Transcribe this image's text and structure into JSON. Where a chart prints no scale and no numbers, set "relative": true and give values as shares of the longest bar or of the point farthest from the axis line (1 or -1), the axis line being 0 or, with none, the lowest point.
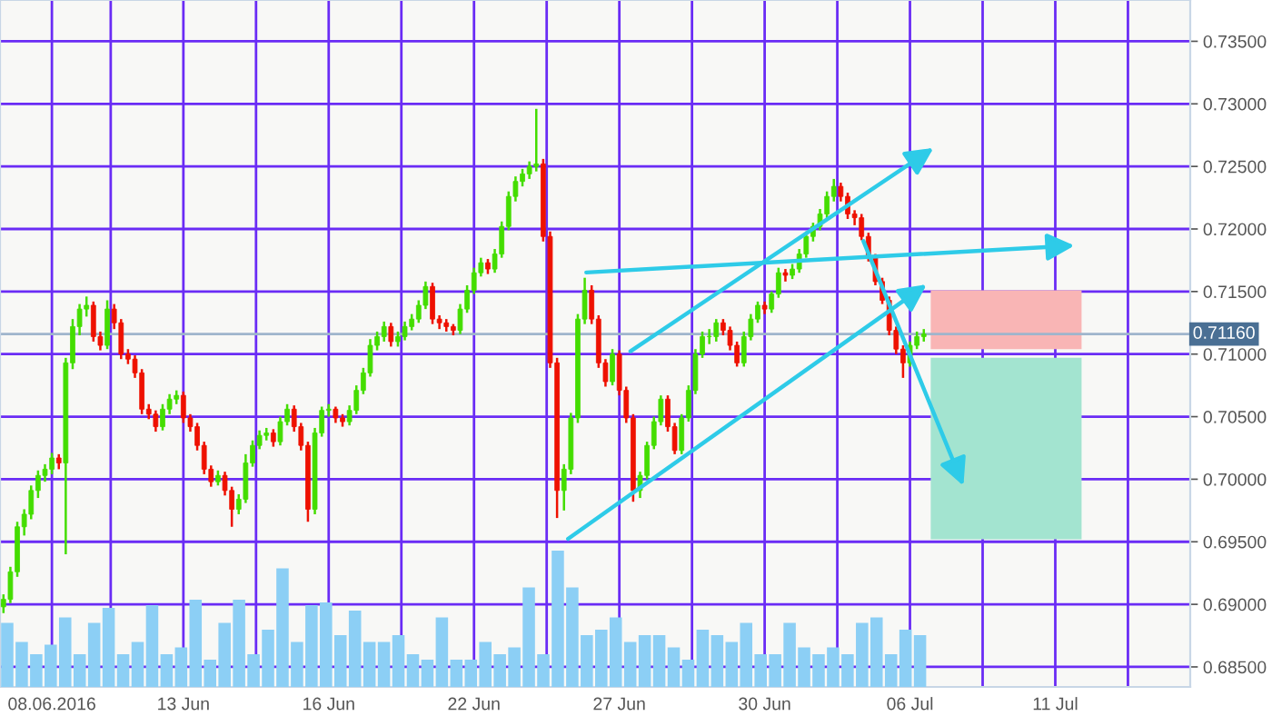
{
  "chart_data": [
    {
      "type": "candlestick",
      "categories": [
        null,
        null,
        null,
        null,
        null,
        null,
        null,
        "08.06.2016",
        null,
        null,
        null,
        null,
        null,
        null,
        null,
        null,
        null,
        null,
        null,
        null,
        null,
        null,
        null,
        null,
        null,
        null,
        "13 Jun",
        null,
        null,
        null,
        null,
        null,
        null,
        null,
        null,
        null,
        null,
        null,
        null,
        null,
        null,
        null,
        null,
        null,
        null,
        null,
        null,
        "16 Jun",
        null,
        null,
        null,
        null,
        null,
        null,
        null,
        null,
        null,
        null,
        null,
        null,
        null,
        null,
        null,
        null,
        null,
        null,
        null,
        null,
        "22 Jun",
        null,
        null,
        null,
        null,
        null,
        null,
        null,
        null,
        null,
        null,
        null,
        null,
        null,
        null,
        null,
        null,
        null,
        null,
        null,
        null,
        "27 Jun",
        null,
        null,
        null,
        null,
        null,
        null,
        null,
        null,
        null,
        null,
        null,
        null,
        null,
        null,
        null,
        null,
        null,
        null,
        null,
        null,
        "30 Jun",
        null,
        null,
        null,
        null,
        null,
        null,
        null,
        null,
        null,
        null,
        null,
        null,
        null,
        null,
        null,
        null,
        null,
        null,
        null,
        null,
        "06 Jul",
        null,
        null,
        null,
        null,
        null,
        null,
        null,
        null,
        null,
        null,
        null,
        null,
        null,
        null,
        null,
        null,
        null,
        null,
        null,
        null,
        "11 Jul",
        null,
        null,
        null,
        null,
        null,
        null,
        null,
        null,
        null,
        null,
        null,
        null,
        null,
        null,
        null,
        null,
        null,
        null,
        null
      ],
      "ohlc": [
        [
          0.6898,
          0.6908,
          0.6893,
          0.6904
        ],
        [
          0.6904,
          0.693,
          0.6901,
          0.6926
        ],
        [
          0.6926,
          0.6966,
          0.6922,
          0.6962
        ],
        [
          0.6962,
          0.6976,
          0.6955,
          0.6972
        ],
        [
          0.6972,
          0.6995,
          0.6968,
          0.6991
        ],
        [
          0.6991,
          0.7007,
          0.6985,
          0.7003
        ],
        [
          0.7003,
          0.7012,
          0.6998,
          0.7008
        ],
        [
          0.7008,
          0.7021,
          0.7004,
          0.7017
        ],
        [
          0.7017,
          0.702,
          0.7008,
          0.7013
        ],
        [
          0.7013,
          0.7097,
          0.694,
          0.7093
        ],
        [
          0.7093,
          0.7128,
          0.7088,
          0.7122
        ],
        [
          0.7122,
          0.714,
          0.7115,
          0.7136
        ],
        [
          0.7136,
          0.7146,
          0.713,
          0.7139
        ],
        [
          0.7139,
          0.7142,
          0.711,
          0.7114
        ],
        [
          0.7114,
          0.7118,
          0.7103,
          0.7107
        ],
        [
          0.7107,
          0.7143,
          0.7104,
          0.7136
        ],
        [
          0.7136,
          0.714,
          0.712,
          0.7125
        ],
        [
          0.7125,
          0.7128,
          0.7096,
          0.71
        ],
        [
          0.71,
          0.7104,
          0.7092,
          0.7096
        ],
        [
          0.7096,
          0.7099,
          0.7081,
          0.7085
        ],
        [
          0.7085,
          0.7088,
          0.7052,
          0.7056
        ],
        [
          0.7056,
          0.706,
          0.7048,
          0.7052
        ],
        [
          0.7052,
          0.7055,
          0.7038,
          0.7042
        ],
        [
          0.7042,
          0.706,
          0.7039,
          0.7056
        ],
        [
          0.7056,
          0.7068,
          0.7052,
          0.7064
        ],
        [
          0.7064,
          0.7071,
          0.706,
          0.7067
        ],
        [
          0.7067,
          0.707,
          0.7045,
          0.7049
        ],
        [
          0.7049,
          0.7052,
          0.7038,
          0.7042
        ],
        [
          0.7042,
          0.7045,
          0.7023,
          0.7027
        ],
        [
          0.7027,
          0.703,
          0.7004,
          0.7008
        ],
        [
          0.7008,
          0.7011,
          0.6994,
          0.6998
        ],
        [
          0.6998,
          0.7007,
          0.6995,
          0.7003
        ],
        [
          0.7003,
          0.7006,
          0.6987,
          0.6991
        ],
        [
          0.6991,
          0.6994,
          0.6962,
          0.6976
        ],
        [
          0.6976,
          0.6988,
          0.6972,
          0.6984
        ],
        [
          0.6984,
          0.702,
          0.6981,
          0.7013
        ],
        [
          0.7013,
          0.7031,
          0.701,
          0.7027
        ],
        [
          0.7027,
          0.7039,
          0.7024,
          0.7035
        ],
        [
          0.7035,
          0.7041,
          0.7031,
          0.7037
        ],
        [
          0.7037,
          0.704,
          0.7026,
          0.703
        ],
        [
          0.703,
          0.705,
          0.7027,
          0.7046
        ],
        [
          0.7046,
          0.706,
          0.7043,
          0.7056
        ],
        [
          0.7056,
          0.7059,
          0.7038,
          0.7042
        ],
        [
          0.7042,
          0.7045,
          0.7023,
          0.7027
        ],
        [
          0.7027,
          0.703,
          0.6966,
          0.6976
        ],
        [
          0.6976,
          0.7041,
          0.6972,
          0.7037
        ],
        [
          0.7037,
          0.7058,
          0.7034,
          0.7055
        ],
        [
          0.7055,
          0.706,
          0.705,
          0.7056
        ],
        [
          0.7056,
          0.7058,
          0.7045,
          0.7049
        ],
        [
          0.7049,
          0.7052,
          0.7042,
          0.7046
        ],
        [
          0.7046,
          0.7059,
          0.7043,
          0.7055
        ],
        [
          0.7055,
          0.7075,
          0.7052,
          0.7071
        ],
        [
          0.7071,
          0.7089,
          0.7068,
          0.7085
        ],
        [
          0.7085,
          0.7112,
          0.7082,
          0.7107
        ],
        [
          0.7107,
          0.7118,
          0.7103,
          0.7114
        ],
        [
          0.7114,
          0.7126,
          0.711,
          0.7122
        ],
        [
          0.7122,
          0.7125,
          0.7106,
          0.711
        ],
        [
          0.711,
          0.7118,
          0.7106,
          0.7114
        ],
        [
          0.7114,
          0.7126,
          0.7111,
          0.7122
        ],
        [
          0.7122,
          0.7132,
          0.7119,
          0.7128
        ],
        [
          0.7128,
          0.7143,
          0.7125,
          0.7139
        ],
        [
          0.7139,
          0.7158,
          0.7136,
          0.7154
        ],
        [
          0.7154,
          0.7157,
          0.7124,
          0.7128
        ],
        [
          0.7128,
          0.7131,
          0.712,
          0.7125
        ],
        [
          0.7125,
          0.7128,
          0.7118,
          0.7122
        ],
        [
          0.7122,
          0.7124,
          0.7115,
          0.7119
        ],
        [
          0.7119,
          0.714,
          0.7116,
          0.7136
        ],
        [
          0.7136,
          0.7155,
          0.7133,
          0.7151
        ],
        [
          0.7151,
          0.7169,
          0.7148,
          0.7165
        ],
        [
          0.7165,
          0.7177,
          0.7162,
          0.7173
        ],
        [
          0.7173,
          0.7176,
          0.7164,
          0.7168
        ],
        [
          0.7168,
          0.7184,
          0.7165,
          0.718
        ],
        [
          0.718,
          0.7206,
          0.7177,
          0.7202
        ],
        [
          0.7202,
          0.723,
          0.7199,
          0.7226
        ],
        [
          0.7226,
          0.7242,
          0.7222,
          0.7238
        ],
        [
          0.7238,
          0.7248,
          0.7234,
          0.7244
        ],
        [
          0.7244,
          0.7254,
          0.724,
          0.725
        ],
        [
          0.725,
          0.7296,
          0.7246,
          0.7252
        ],
        [
          0.7252,
          0.7256,
          0.719,
          0.7194
        ],
        [
          0.7194,
          0.7198,
          0.7089,
          0.7093
        ],
        [
          0.7093,
          0.7097,
          0.6969,
          0.6991
        ],
        [
          0.6991,
          0.7012,
          0.6975,
          0.7008
        ],
        [
          0.7008,
          0.7053,
          0.7004,
          0.7049
        ],
        [
          0.7049,
          0.7132,
          0.7045,
          0.7128
        ],
        [
          0.7128,
          0.7161,
          0.7124,
          0.7151
        ],
        [
          0.7151,
          0.7155,
          0.7124,
          0.7128
        ],
        [
          0.7128,
          0.7131,
          0.7089,
          0.7093
        ],
        [
          0.7093,
          0.7096,
          0.7074,
          0.7078
        ],
        [
          0.7078,
          0.7104,
          0.7075,
          0.71
        ],
        [
          0.71,
          0.7103,
          0.7067,
          0.7071
        ],
        [
          0.7071,
          0.7074,
          0.7045,
          0.7049
        ],
        [
          0.7049,
          0.7052,
          0.6982,
          0.6991
        ],
        [
          0.6991,
          0.7006,
          0.6985,
          0.7003
        ],
        [
          0.7003,
          0.703,
          0.7,
          0.7027
        ],
        [
          0.7027,
          0.705,
          0.7024,
          0.7046
        ],
        [
          0.7046,
          0.7067,
          0.7043,
          0.7064
        ],
        [
          0.7064,
          0.7067,
          0.7038,
          0.7042
        ],
        [
          0.7042,
          0.7045,
          0.702,
          0.7023
        ],
        [
          0.7023,
          0.7052,
          0.702,
          0.7049
        ],
        [
          0.7049,
          0.7075,
          0.7046,
          0.7071
        ],
        [
          0.7071,
          0.7104,
          0.7068,
          0.71
        ],
        [
          0.71,
          0.7118,
          0.7097,
          0.7114
        ],
        [
          0.7114,
          0.712,
          0.7108,
          0.7114
        ],
        [
          0.7114,
          0.7128,
          0.711,
          0.7125
        ],
        [
          0.7125,
          0.7128,
          0.7115,
          0.7119
        ],
        [
          0.7119,
          0.7122,
          0.7103,
          0.7107
        ],
        [
          0.7107,
          0.711,
          0.709,
          0.7093
        ],
        [
          0.7093,
          0.7118,
          0.709,
          0.7114
        ],
        [
          0.7114,
          0.7132,
          0.7111,
          0.7128
        ],
        [
          0.7128,
          0.7142,
          0.7125,
          0.7139
        ],
        [
          0.7139,
          0.7142,
          0.7132,
          0.7136
        ],
        [
          0.7136,
          0.715,
          0.7133,
          0.7148
        ],
        [
          0.7148,
          0.7169,
          0.7145,
          0.7165
        ],
        [
          0.7165,
          0.7168,
          0.7158,
          0.7163
        ],
        [
          0.7163,
          0.7172,
          0.716,
          0.7168
        ],
        [
          0.7168,
          0.7184,
          0.7165,
          0.718
        ],
        [
          0.718,
          0.7198,
          0.7177,
          0.7194
        ],
        [
          0.7194,
          0.7205,
          0.719,
          0.7202
        ],
        [
          0.7202,
          0.7216,
          0.7199,
          0.7212
        ],
        [
          0.7212,
          0.723,
          0.7208,
          0.7226
        ],
        [
          0.7226,
          0.724,
          0.7222,
          0.7234
        ],
        [
          0.7234,
          0.7237,
          0.7222,
          0.7226
        ],
        [
          0.7226,
          0.7229,
          0.7208,
          0.7212
        ],
        [
          0.7212,
          0.7215,
          0.7203,
          0.7209
        ],
        [
          0.7209,
          0.7212,
          0.7191,
          0.7194
        ],
        [
          0.7194,
          0.7197,
          0.7174,
          0.7177
        ],
        [
          0.7177,
          0.718,
          0.7155,
          0.7158
        ],
        [
          0.7158,
          0.7161,
          0.714,
          0.7143
        ],
        [
          0.7143,
          0.7146,
          0.7115,
          0.7119
        ],
        [
          0.7119,
          0.7122,
          0.71,
          0.7104
        ],
        [
          0.7104,
          0.7107,
          0.7081,
          0.7093
        ],
        [
          0.7093,
          0.711,
          0.709,
          0.7107
        ],
        [
          0.7107,
          0.7118,
          0.7104,
          0.7114
        ],
        [
          0.7114,
          0.712,
          0.711,
          0.7116
        ],
        null,
        null,
        null,
        null,
        null,
        null,
        null,
        null,
        null,
        null,
        null,
        null,
        null,
        null,
        null,
        null,
        null,
        null,
        null,
        null,
        null,
        null,
        null,
        null,
        null,
        null,
        null,
        null,
        null,
        null,
        null,
        null,
        null,
        null,
        null,
        null,
        null,
        null
      ],
      "ylim": [
        0.6834,
        0.7383
      ],
      "yticks": [
        {
          "value": 0.685,
          "label": "0.68500"
        },
        {
          "value": 0.69,
          "label": "0.69000"
        },
        {
          "value": 0.695,
          "label": "0.69500"
        },
        {
          "value": 0.7,
          "label": "0.70000"
        },
        {
          "value": 0.705,
          "label": "0.70500"
        },
        {
          "value": 0.71,
          "label": "0.71000"
        },
        {
          "value": 0.715,
          "label": "0.71500"
        },
        {
          "value": 0.72,
          "label": "0.72000"
        },
        {
          "value": 0.725,
          "label": "0.72500"
        },
        {
          "value": 0.73,
          "label": "0.73000"
        },
        {
          "value": 0.735,
          "label": "0.73500"
        }
      ],
      "grid": true,
      "ref_lines": [
        {
          "axis": "y",
          "value": 0.7116,
          "label": "0.71160",
          "color": "#9fb5cc"
        }
      ]
    },
    {
      "type": "bar",
      "relative": true,
      "categories": [
        null,
        null,
        null,
        null,
        null,
        null,
        null,
        null,
        null,
        null,
        null,
        null,
        null,
        null,
        null,
        null,
        null,
        null,
        null,
        null,
        null,
        null,
        null,
        null,
        null,
        null,
        null,
        null,
        null,
        null,
        null,
        null,
        null,
        null,
        null,
        null,
        null,
        null,
        null,
        null,
        null,
        null,
        null,
        null,
        null,
        null,
        null,
        null,
        null,
        null,
        null,
        null,
        null,
        null,
        null,
        null,
        null,
        null,
        null,
        null,
        null,
        null,
        null,
        null
      ],
      "values": [
        0.47,
        0.33,
        0.24,
        0.31,
        0.51,
        0.24,
        0.47,
        0.58,
        0.24,
        0.33,
        0.6,
        0.24,
        0.29,
        0.64,
        0.2,
        0.47,
        0.64,
        0.24,
        0.42,
        0.87,
        0.33,
        0.6,
        0.62,
        0.38,
        0.56,
        0.33,
        0.33,
        0.38,
        0.24,
        0.2,
        0.51,
        0.2,
        0.2,
        0.33,
        0.24,
        0.29,
        0.73,
        0.24,
        1.0,
        0.73,
        0.38,
        0.42,
        0.51,
        0.33,
        0.38,
        0.38,
        0.29,
        0.2,
        0.42,
        0.38,
        0.33,
        0.47,
        0.24,
        0.24,
        0.47,
        0.29,
        0.24,
        0.29,
        0.24,
        0.47,
        0.51,
        0.24,
        0.42,
        0.38
      ],
      "color": "#8ccff5"
    }
  ]
}
